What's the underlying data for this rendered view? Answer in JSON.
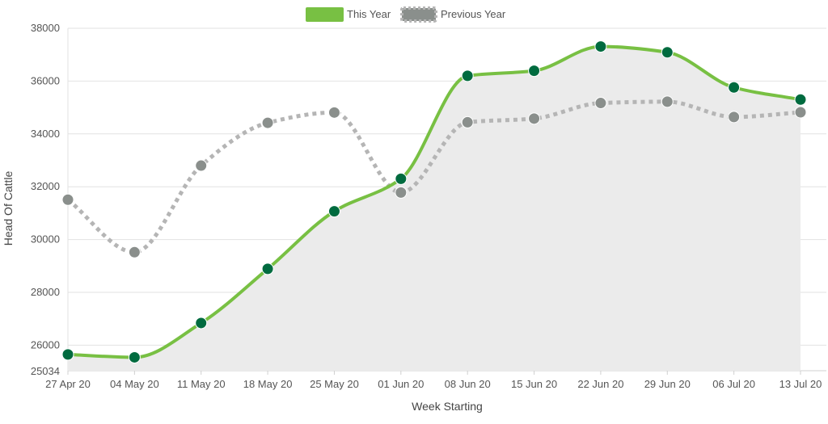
{
  "chart_data": {
    "type": "line",
    "xlabel": "Week Starting",
    "ylabel": "Head Of Cattle",
    "categories": [
      "27 Apr 20",
      "04 May 20",
      "11 May 20",
      "18 May 20",
      "25 May 20",
      "01 Jun 20",
      "08 Jun 20",
      "15 Jun 20",
      "22 Jun 20",
      "29 Jun 20",
      "06 Jul 20",
      "13 Jul 20"
    ],
    "ylim": [
      25034,
      38000
    ],
    "yticks": [
      25034,
      26000,
      28000,
      30000,
      32000,
      34000,
      36000,
      38000
    ],
    "grid": true,
    "legend_position": "top-center",
    "series": [
      {
        "name": "This Year",
        "color": "#78c043",
        "marker_color": "#006b3f",
        "style": "solid",
        "area": true,
        "area_color": "#ebebeb",
        "values": [
          25650,
          25540,
          26840,
          28890,
          31070,
          32300,
          36200,
          36390,
          37310,
          37090,
          35760,
          35300
        ]
      },
      {
        "name": "Previous Year",
        "color": "#b5b5b5",
        "marker_color": "#8a8f8c",
        "style": "dotted",
        "area": false,
        "values": [
          31510,
          29520,
          32800,
          34420,
          34810,
          31780,
          34440,
          34580,
          35170,
          35220,
          34640,
          34820
        ]
      }
    ]
  }
}
